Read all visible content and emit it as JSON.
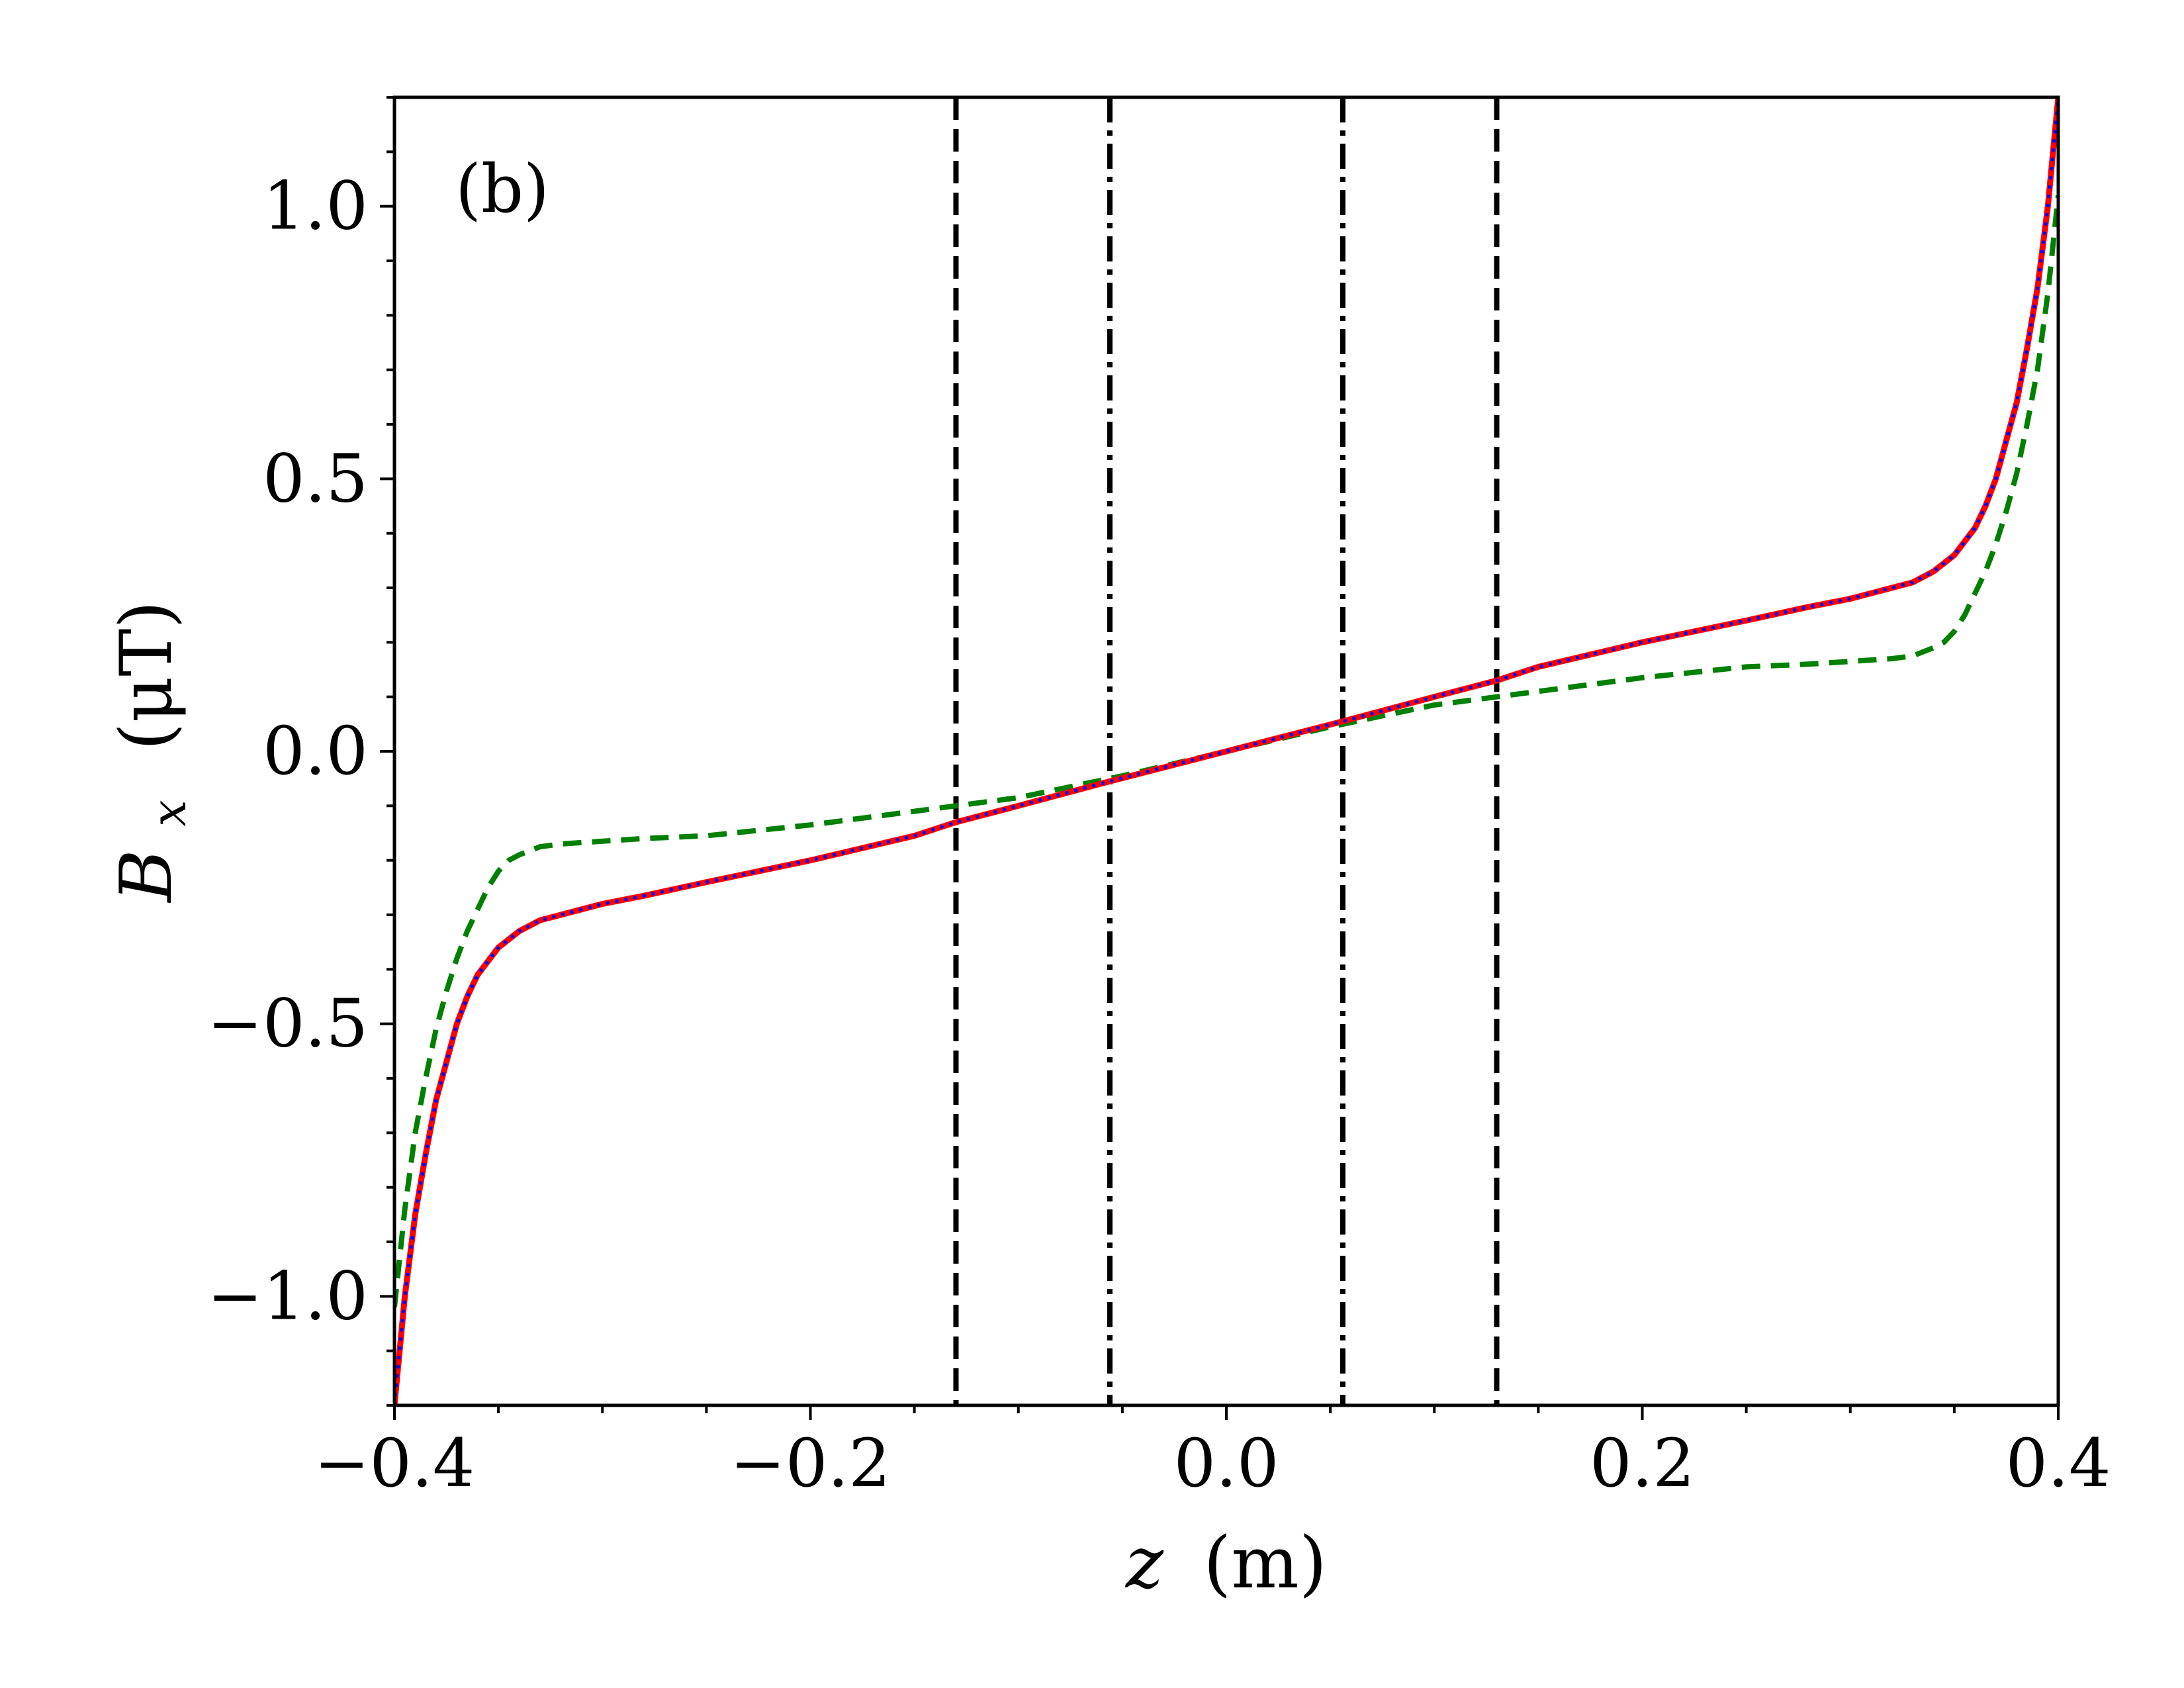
{
  "chart_data": {
    "type": "line",
    "panel_label": "(b)",
    "xlabel": {
      "var": "z",
      "unit": "(m)"
    },
    "ylabel": {
      "base": "B",
      "sub": "x",
      "unit": "(μT)"
    },
    "xlim": [
      -0.4,
      0.4
    ],
    "ylim": [
      -1.2,
      1.2
    ],
    "x_ticks": [
      -0.4,
      -0.2,
      0.0,
      0.2,
      0.4
    ],
    "x_tick_labels": [
      "−0.4",
      "−0.2",
      "0.0",
      "0.2",
      "0.4"
    ],
    "y_ticks": [
      -1.0,
      -0.5,
      0.0,
      0.5,
      1.0
    ],
    "y_tick_labels": [
      "−1.0",
      "−0.5",
      "0.0",
      "0.5",
      "1.0"
    ],
    "x_minor_step": 0.05,
    "y_minor_step": 0.1,
    "grid": false,
    "colors": {
      "red": "#ff0000",
      "blue": "#0000ff",
      "green": "#008000",
      "black": "#000000"
    },
    "series": [
      {
        "style": "solid",
        "color": "#ff0000",
        "x": [
          -0.4,
          -0.395,
          -0.39,
          -0.385,
          -0.38,
          -0.375,
          -0.37,
          -0.365,
          -0.36,
          -0.35,
          -0.34,
          -0.33,
          -0.32,
          -0.3,
          -0.28,
          -0.25,
          -0.2,
          -0.15,
          -0.13,
          -0.1,
          -0.056,
          0.0,
          0.056,
          0.1,
          0.13,
          0.15,
          0.2,
          0.25,
          0.28,
          0.3,
          0.32,
          0.33,
          0.34,
          0.35,
          0.36,
          0.365,
          0.37,
          0.375,
          0.38,
          0.385,
          0.39,
          0.395,
          0.4
        ],
        "y": [
          -1.2,
          -1.0,
          -0.85,
          -0.74,
          -0.64,
          -0.57,
          -0.5,
          -0.45,
          -0.41,
          -0.36,
          -0.33,
          -0.31,
          -0.3,
          -0.28,
          -0.265,
          -0.24,
          -0.2,
          -0.155,
          -0.13,
          -0.1,
          -0.055,
          0.0,
          0.055,
          0.1,
          0.13,
          0.155,
          0.2,
          0.24,
          0.265,
          0.28,
          0.3,
          0.31,
          0.33,
          0.36,
          0.41,
          0.45,
          0.5,
          0.57,
          0.64,
          0.74,
          0.85,
          1.0,
          1.2
        ]
      },
      {
        "style": "dotted",
        "color": "#0000ff",
        "x": [
          -0.4,
          -0.395,
          -0.39,
          -0.385,
          -0.38,
          -0.375,
          -0.37,
          -0.365,
          -0.36,
          -0.35,
          -0.34,
          -0.33,
          -0.32,
          -0.3,
          -0.28,
          -0.25,
          -0.2,
          -0.15,
          -0.13,
          -0.1,
          -0.056,
          0.0,
          0.056,
          0.1,
          0.13,
          0.15,
          0.2,
          0.25,
          0.28,
          0.3,
          0.32,
          0.33,
          0.34,
          0.35,
          0.36,
          0.365,
          0.37,
          0.375,
          0.38,
          0.385,
          0.39,
          0.395,
          0.4
        ],
        "y": [
          -1.2,
          -1.0,
          -0.85,
          -0.74,
          -0.64,
          -0.57,
          -0.5,
          -0.45,
          -0.41,
          -0.36,
          -0.33,
          -0.31,
          -0.3,
          -0.28,
          -0.265,
          -0.24,
          -0.2,
          -0.155,
          -0.13,
          -0.1,
          -0.055,
          0.0,
          0.055,
          0.1,
          0.13,
          0.155,
          0.2,
          0.24,
          0.265,
          0.28,
          0.3,
          0.31,
          0.33,
          0.36,
          0.41,
          0.45,
          0.5,
          0.57,
          0.64,
          0.74,
          0.85,
          1.0,
          1.2
        ]
      },
      {
        "style": "dashed",
        "color": "#008000",
        "x": [
          -0.4,
          -0.395,
          -0.39,
          -0.385,
          -0.38,
          -0.375,
          -0.37,
          -0.365,
          -0.36,
          -0.355,
          -0.35,
          -0.345,
          -0.34,
          -0.33,
          -0.32,
          -0.3,
          -0.28,
          -0.25,
          -0.2,
          -0.15,
          -0.13,
          -0.1,
          -0.05,
          0.0,
          0.05,
          0.1,
          0.13,
          0.15,
          0.2,
          0.25,
          0.28,
          0.3,
          0.32,
          0.33,
          0.34,
          0.345,
          0.35,
          0.355,
          0.36,
          0.365,
          0.37,
          0.375,
          0.38,
          0.385,
          0.39,
          0.395,
          0.4
        ],
        "y": [
          -1.02,
          -0.84,
          -0.7,
          -0.6,
          -0.51,
          -0.44,
          -0.38,
          -0.33,
          -0.29,
          -0.25,
          -0.22,
          -0.2,
          -0.19,
          -0.175,
          -0.17,
          -0.165,
          -0.16,
          -0.155,
          -0.135,
          -0.11,
          -0.1,
          -0.085,
          -0.045,
          0.0,
          0.045,
          0.085,
          0.1,
          0.11,
          0.135,
          0.155,
          0.16,
          0.165,
          0.17,
          0.175,
          0.19,
          0.2,
          0.22,
          0.25,
          0.29,
          0.33,
          0.38,
          0.44,
          0.51,
          0.6,
          0.7,
          0.84,
          1.02
        ]
      }
    ],
    "vertical_lines": [
      {
        "x": -0.13,
        "style": "dashed"
      },
      {
        "x": -0.056,
        "style": "dashdot"
      },
      {
        "x": 0.056,
        "style": "dashdot"
      },
      {
        "x": 0.13,
        "style": "dashed"
      }
    ]
  }
}
